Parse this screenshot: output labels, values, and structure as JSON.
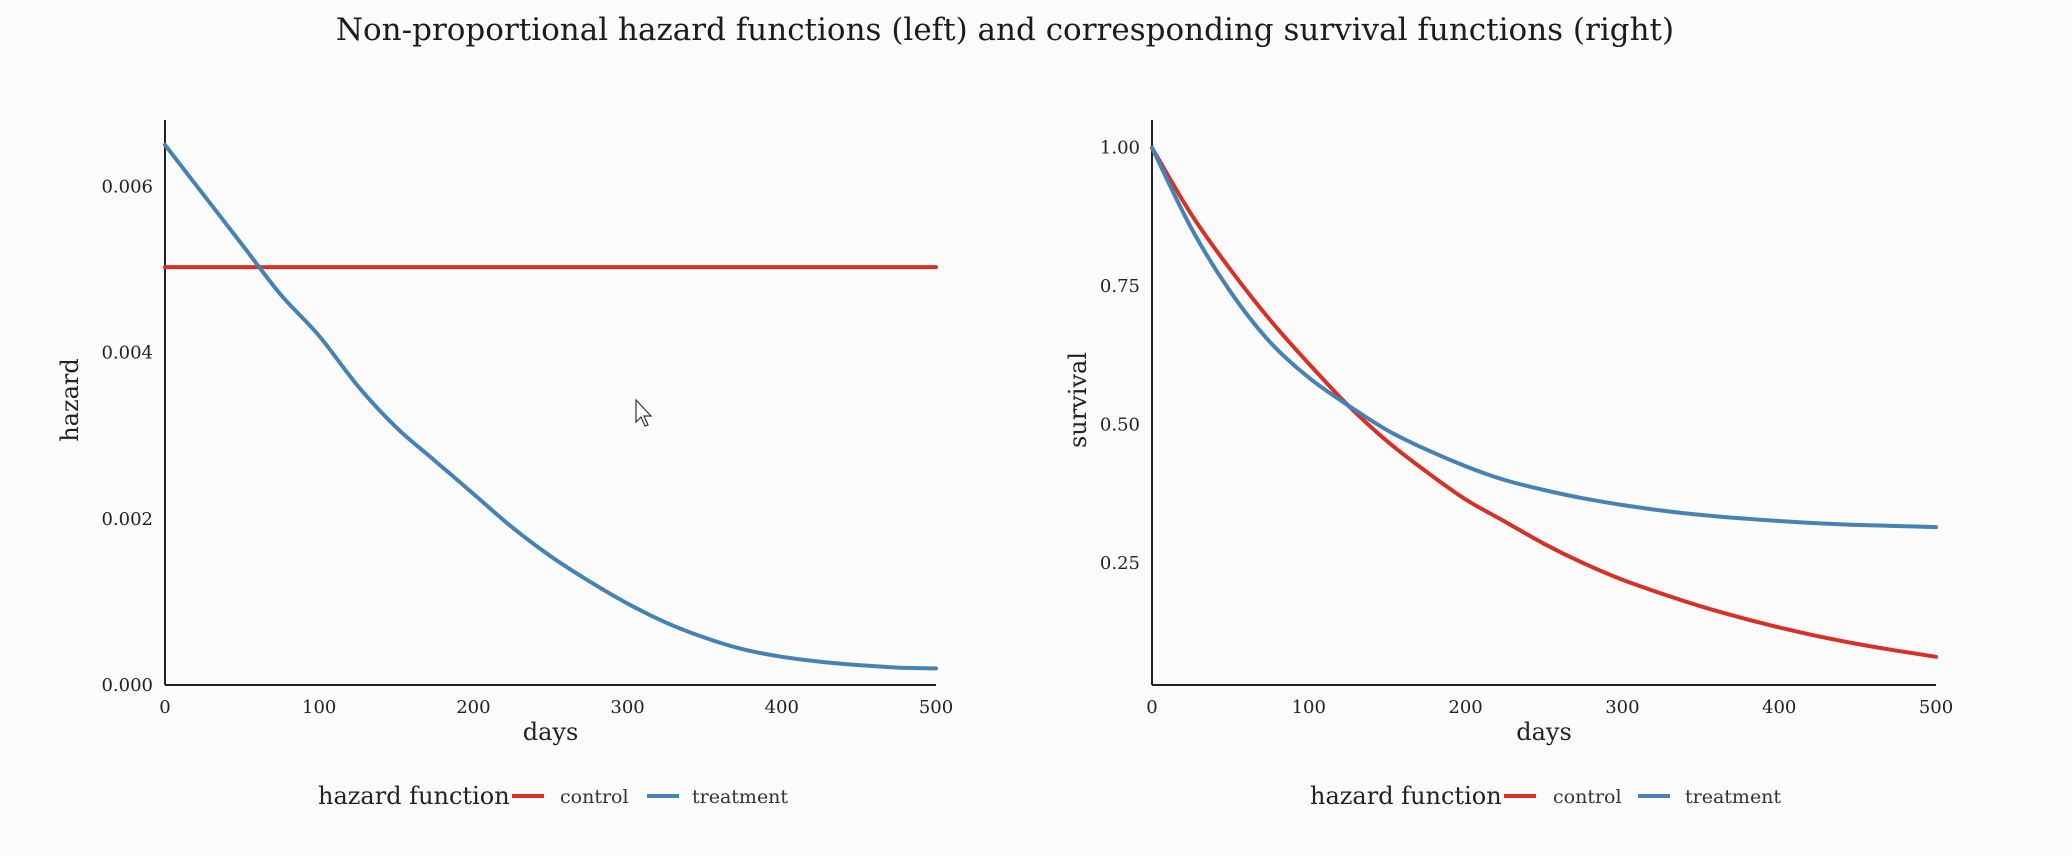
{
  "title": "Non-proportional hazard functions (left) and corresponding survival functions (right)",
  "colors": {
    "control": "#d73027",
    "treatment": "#4682b4",
    "axis": "#222222"
  },
  "chart_data": [
    {
      "type": "line",
      "xlabel": "days",
      "ylabel": "hazard",
      "xlim": [
        0,
        500
      ],
      "ylim": [
        0,
        0.0068
      ],
      "xticks": [
        "0",
        "100",
        "200",
        "300",
        "400",
        "500"
      ],
      "yticks": [
        "0.000",
        "0.002",
        "0.004",
        "0.006"
      ],
      "legend": {
        "title": "hazard function",
        "position": "bottom",
        "entries": [
          "control",
          "treatment"
        ]
      },
      "grid": false,
      "x": [
        0,
        25,
        50,
        75,
        100,
        125,
        150,
        175,
        200,
        225,
        250,
        275,
        300,
        325,
        350,
        375,
        400,
        425,
        450,
        475,
        500
      ],
      "series": [
        {
          "name": "control",
          "color": "#d73027",
          "values": [
            0.00503,
            0.00503,
            0.00503,
            0.00503,
            0.00503,
            0.00503,
            0.00503,
            0.00503,
            0.00503,
            0.00503,
            0.00503,
            0.00503,
            0.00503,
            0.00503,
            0.00503,
            0.00503,
            0.00503,
            0.00503,
            0.00503,
            0.00503,
            0.00503
          ]
        },
        {
          "name": "treatment",
          "color": "#4682b4",
          "values": [
            0.0065,
            0.0059,
            0.0053,
            0.0047,
            0.0042,
            0.0036,
            0.0031,
            0.0027,
            0.0023,
            0.0019,
            0.00155,
            0.00125,
            0.00098,
            0.00075,
            0.00057,
            0.00043,
            0.00034,
            0.00028,
            0.00024,
            0.00021,
            0.0002
          ]
        }
      ]
    },
    {
      "type": "line",
      "xlabel": "days",
      "ylabel": "survival",
      "xlim": [
        0,
        500
      ],
      "ylim": [
        0.03,
        1.05
      ],
      "xticks": [
        "0",
        "100",
        "200",
        "300",
        "400",
        "500"
      ],
      "yticks": [
        "0.25",
        "0.50",
        "0.75",
        "1.00"
      ],
      "legend": {
        "title": "hazard function",
        "position": "bottom",
        "entries": [
          "control",
          "treatment"
        ]
      },
      "grid": false,
      "x": [
        0,
        25,
        50,
        75,
        100,
        125,
        150,
        175,
        200,
        225,
        250,
        275,
        300,
        325,
        350,
        375,
        400,
        425,
        450,
        475,
        500
      ],
      "series": [
        {
          "name": "control",
          "color": "#d73027",
          "values": [
            1.0,
            0.88,
            0.78,
            0.69,
            0.61,
            0.535,
            0.47,
            0.415,
            0.365,
            0.325,
            0.285,
            0.25,
            0.22,
            0.195,
            0.172,
            0.152,
            0.134,
            0.118,
            0.104,
            0.092,
            0.081
          ]
        },
        {
          "name": "treatment",
          "color": "#4682b4",
          "values": [
            1.0,
            0.855,
            0.74,
            0.65,
            0.585,
            0.535,
            0.49,
            0.455,
            0.425,
            0.4,
            0.382,
            0.367,
            0.355,
            0.345,
            0.337,
            0.331,
            0.326,
            0.322,
            0.319,
            0.317,
            0.315
          ]
        }
      ]
    }
  ]
}
